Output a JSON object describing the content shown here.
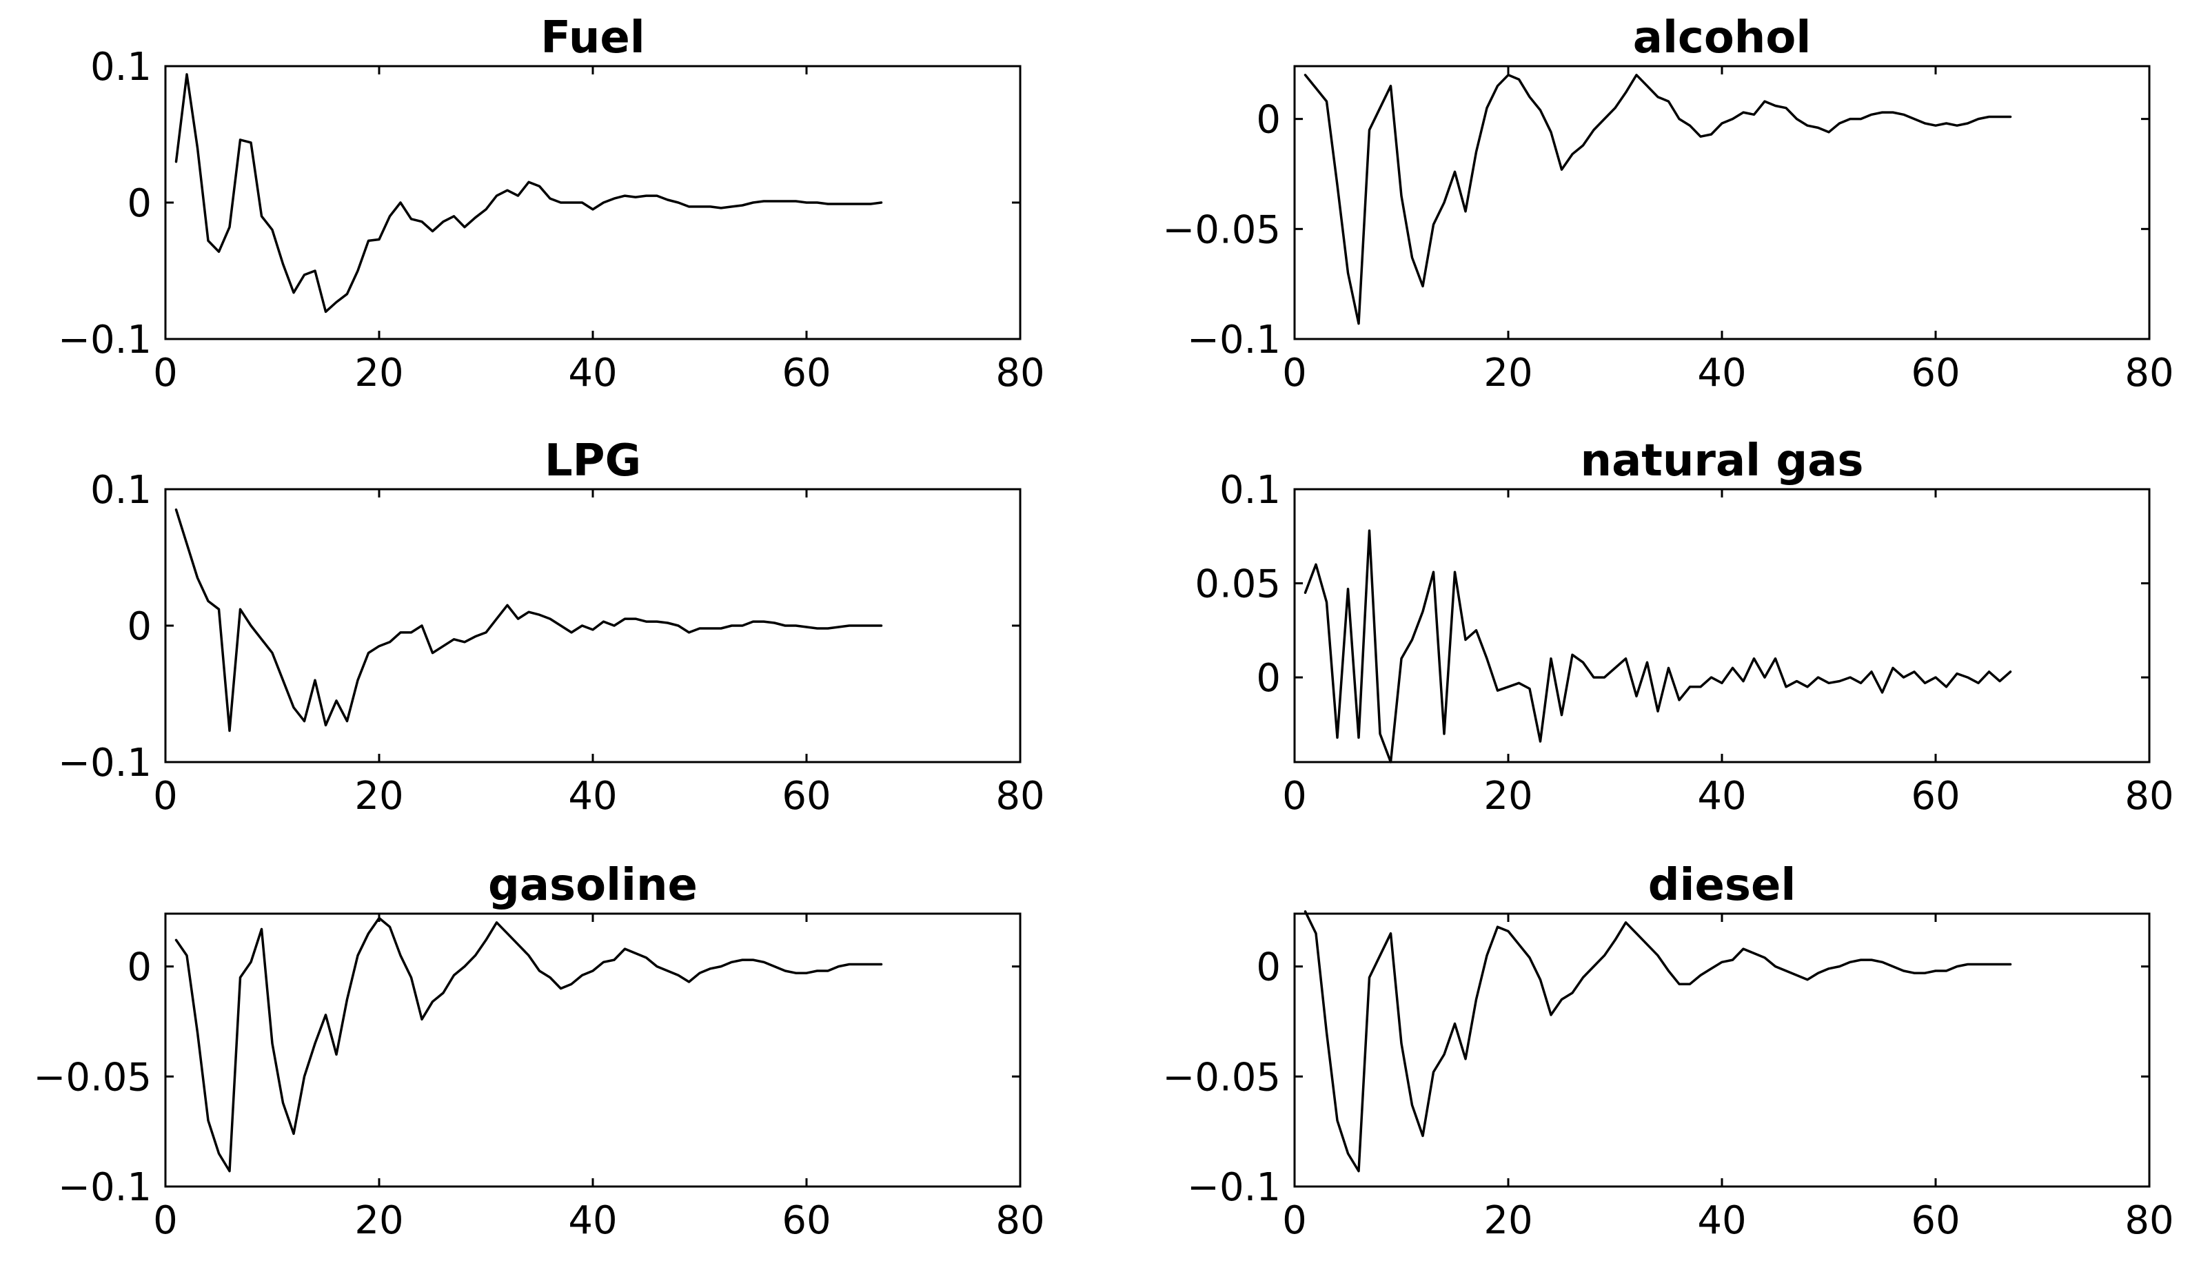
{
  "chart_data": [
    {
      "type": "line",
      "title": "Fuel",
      "xlabel": "",
      "ylabel": "",
      "xlim": [
        0,
        80
      ],
      "ylim": [
        -0.1,
        0.1
      ],
      "xticks": [
        0,
        20,
        40,
        60,
        80
      ],
      "yticks": [
        -0.1,
        0,
        0.1
      ],
      "xtick_labels": [
        "0",
        "20",
        "40",
        "60",
        "80"
      ],
      "ytick_labels": [
        "−0.1",
        "0",
        "0.1"
      ],
      "grid": false,
      "line_color": "#000000",
      "x_start": 1,
      "values": [
        0.03,
        0.094,
        0.04,
        -0.028,
        -0.036,
        -0.018,
        0.046,
        0.044,
        -0.01,
        -0.02,
        -0.045,
        -0.066,
        -0.053,
        -0.05,
        -0.08,
        -0.073,
        -0.067,
        -0.05,
        -0.028,
        -0.027,
        -0.01,
        0.0,
        -0.012,
        -0.014,
        -0.021,
        -0.014,
        -0.01,
        -0.018,
        -0.011,
        -0.005,
        0.005,
        0.009,
        0.005,
        0.015,
        0.012,
        0.003,
        0.0,
        0.0,
        0.0,
        -0.005,
        0.0,
        0.003,
        0.005,
        0.004,
        0.005,
        0.005,
        0.002,
        0.0,
        -0.003,
        -0.003,
        -0.003,
        -0.004,
        -0.003,
        -0.002,
        0.0,
        0.001,
        0.001,
        0.001,
        0.001,
        0.0,
        0.0,
        -0.001,
        -0.001,
        -0.001,
        -0.001,
        -0.001,
        0.0
      ]
    },
    {
      "type": "line",
      "title": "alcohol",
      "xlabel": "",
      "ylabel": "",
      "xlim": [
        0,
        80
      ],
      "ylim": [
        -0.1,
        0.024
      ],
      "xticks": [
        0,
        20,
        40,
        60,
        80
      ],
      "yticks": [
        -0.1,
        -0.05,
        0
      ],
      "xtick_labels": [
        "0",
        "20",
        "40",
        "60",
        "80"
      ],
      "ytick_labels": [
        "−0.1",
        "−0.05",
        "0"
      ],
      "grid": false,
      "line_color": "#000000",
      "x_start": 1,
      "values": [
        0.02,
        0.014,
        0.008,
        -0.03,
        -0.07,
        -0.093,
        -0.005,
        0.005,
        0.015,
        -0.035,
        -0.063,
        -0.076,
        -0.048,
        -0.038,
        -0.024,
        -0.042,
        -0.015,
        0.005,
        0.015,
        0.02,
        0.018,
        0.01,
        0.004,
        -0.006,
        -0.023,
        -0.016,
        -0.012,
        -0.005,
        0.0,
        0.005,
        0.012,
        0.02,
        0.015,
        0.01,
        0.008,
        0.0,
        -0.003,
        -0.008,
        -0.007,
        -0.002,
        0.0,
        0.003,
        0.002,
        0.008,
        0.006,
        0.005,
        0.0,
        -0.003,
        -0.004,
        -0.006,
        -0.002,
        0.0,
        0.0,
        0.002,
        0.003,
        0.003,
        0.002,
        0.0,
        -0.002,
        -0.003,
        -0.002,
        -0.003,
        -0.002,
        0.0,
        0.001,
        0.001,
        0.001
      ]
    },
    {
      "type": "line",
      "title": "LPG",
      "xlabel": "",
      "ylabel": "",
      "xlim": [
        0,
        80
      ],
      "ylim": [
        -0.1,
        0.1
      ],
      "xticks": [
        0,
        20,
        40,
        60,
        80
      ],
      "yticks": [
        -0.1,
        0,
        0.1
      ],
      "xtick_labels": [
        "0",
        "20",
        "40",
        "60",
        "80"
      ],
      "ytick_labels": [
        "−0.1",
        "0",
        "0.1"
      ],
      "grid": false,
      "line_color": "#000000",
      "x_start": 1,
      "values": [
        0.085,
        0.06,
        0.035,
        0.018,
        0.012,
        -0.077,
        0.012,
        0.0,
        -0.01,
        -0.02,
        -0.04,
        -0.06,
        -0.07,
        -0.04,
        -0.073,
        -0.055,
        -0.07,
        -0.04,
        -0.02,
        -0.015,
        -0.012,
        -0.005,
        -0.005,
        0.0,
        -0.02,
        -0.015,
        -0.01,
        -0.012,
        -0.008,
        -0.005,
        0.005,
        0.015,
        0.005,
        0.01,
        0.008,
        0.005,
        0.0,
        -0.005,
        0.0,
        -0.003,
        0.003,
        0.0,
        0.005,
        0.005,
        0.003,
        0.003,
        0.002,
        0.0,
        -0.005,
        -0.002,
        -0.002,
        -0.002,
        0.0,
        0.0,
        0.003,
        0.003,
        0.002,
        0.0,
        0.0,
        -0.001,
        -0.002,
        -0.002,
        -0.001,
        0.0,
        0.0,
        0.0,
        0.0
      ]
    },
    {
      "type": "line",
      "title": "natural gas",
      "xlabel": "",
      "ylabel": "",
      "xlim": [
        0,
        80
      ],
      "ylim": [
        -0.045,
        0.1
      ],
      "xticks": [
        0,
        20,
        40,
        60,
        80
      ],
      "yticks": [
        0,
        0.05,
        0.1
      ],
      "xtick_labels": [
        "0",
        "20",
        "40",
        "60",
        "80"
      ],
      "ytick_labels": [
        "0",
        "0.05",
        "0.1"
      ],
      "grid": false,
      "line_color": "#000000",
      "x_start": 1,
      "values": [
        0.045,
        0.06,
        0.04,
        -0.032,
        0.047,
        -0.032,
        0.078,
        -0.03,
        -0.045,
        0.01,
        0.02,
        0.035,
        0.056,
        -0.03,
        0.056,
        0.02,
        0.025,
        0.01,
        -0.007,
        -0.005,
        -0.003,
        -0.006,
        -0.034,
        0.01,
        -0.02,
        0.012,
        0.008,
        0.0,
        0.0,
        0.005,
        0.01,
        -0.01,
        0.008,
        -0.018,
        0.005,
        -0.012,
        -0.005,
        -0.005,
        0.0,
        -0.003,
        0.005,
        -0.002,
        0.01,
        0.0,
        0.01,
        -0.005,
        -0.002,
        -0.005,
        0.0,
        -0.003,
        -0.002,
        0.0,
        -0.003,
        0.003,
        -0.008,
        0.005,
        0.0,
        0.003,
        -0.003,
        0.0,
        -0.005,
        0.002,
        0.0,
        -0.003,
        0.003,
        -0.002,
        0.003
      ]
    },
    {
      "type": "line",
      "title": "gasoline",
      "xlabel": "",
      "ylabel": "",
      "xlim": [
        0,
        80
      ],
      "ylim": [
        -0.1,
        0.024
      ],
      "xticks": [
        0,
        20,
        40,
        60,
        80
      ],
      "yticks": [
        -0.1,
        -0.05,
        0
      ],
      "xtick_labels": [
        "0",
        "20",
        "40",
        "60",
        "80"
      ],
      "ytick_labels": [
        "−0.1",
        "−0.05",
        "0"
      ],
      "grid": false,
      "line_color": "#000000",
      "x_start": 1,
      "values": [
        0.012,
        0.005,
        -0.03,
        -0.07,
        -0.085,
        -0.093,
        -0.005,
        0.002,
        0.017,
        -0.035,
        -0.062,
        -0.076,
        -0.05,
        -0.035,
        -0.022,
        -0.04,
        -0.015,
        0.005,
        0.015,
        0.022,
        0.018,
        0.005,
        -0.005,
        -0.024,
        -0.016,
        -0.012,
        -0.004,
        0.0,
        0.005,
        0.012,
        0.02,
        0.015,
        0.01,
        0.005,
        -0.002,
        -0.005,
        -0.01,
        -0.008,
        -0.004,
        -0.002,
        0.002,
        0.003,
        0.008,
        0.006,
        0.004,
        0.0,
        -0.002,
        -0.004,
        -0.007,
        -0.003,
        -0.001,
        0.0,
        0.002,
        0.003,
        0.003,
        0.002,
        0.0,
        -0.002,
        -0.003,
        -0.003,
        -0.002,
        -0.002,
        0.0,
        0.001,
        0.001,
        0.001,
        0.001
      ]
    },
    {
      "type": "line",
      "title": "diesel",
      "xlabel": "",
      "ylabel": "",
      "xlim": [
        0,
        80
      ],
      "ylim": [
        -0.1,
        0.024
      ],
      "xticks": [
        0,
        20,
        40,
        60,
        80
      ],
      "yticks": [
        -0.1,
        -0.05,
        0
      ],
      "xtick_labels": [
        "0",
        "20",
        "40",
        "60",
        "80"
      ],
      "ytick_labels": [
        "−0.1",
        "−0.05",
        "0"
      ],
      "grid": false,
      "line_color": "#000000",
      "x_start": 1,
      "values": [
        0.025,
        0.015,
        -0.03,
        -0.07,
        -0.085,
        -0.093,
        -0.005,
        0.005,
        0.015,
        -0.035,
        -0.063,
        -0.077,
        -0.048,
        -0.04,
        -0.026,
        -0.042,
        -0.015,
        0.005,
        0.018,
        0.016,
        0.01,
        0.004,
        -0.006,
        -0.022,
        -0.015,
        -0.012,
        -0.005,
        0.0,
        0.005,
        0.012,
        0.02,
        0.015,
        0.01,
        0.005,
        -0.002,
        -0.008,
        -0.008,
        -0.004,
        -0.001,
        0.002,
        0.003,
        0.008,
        0.006,
        0.004,
        0.0,
        -0.002,
        -0.004,
        -0.006,
        -0.003,
        -0.001,
        0.0,
        0.002,
        0.003,
        0.003,
        0.002,
        0.0,
        -0.002,
        -0.003,
        -0.003,
        -0.002,
        -0.002,
        0.0,
        0.001,
        0.001,
        0.001,
        0.001,
        0.001
      ]
    }
  ]
}
